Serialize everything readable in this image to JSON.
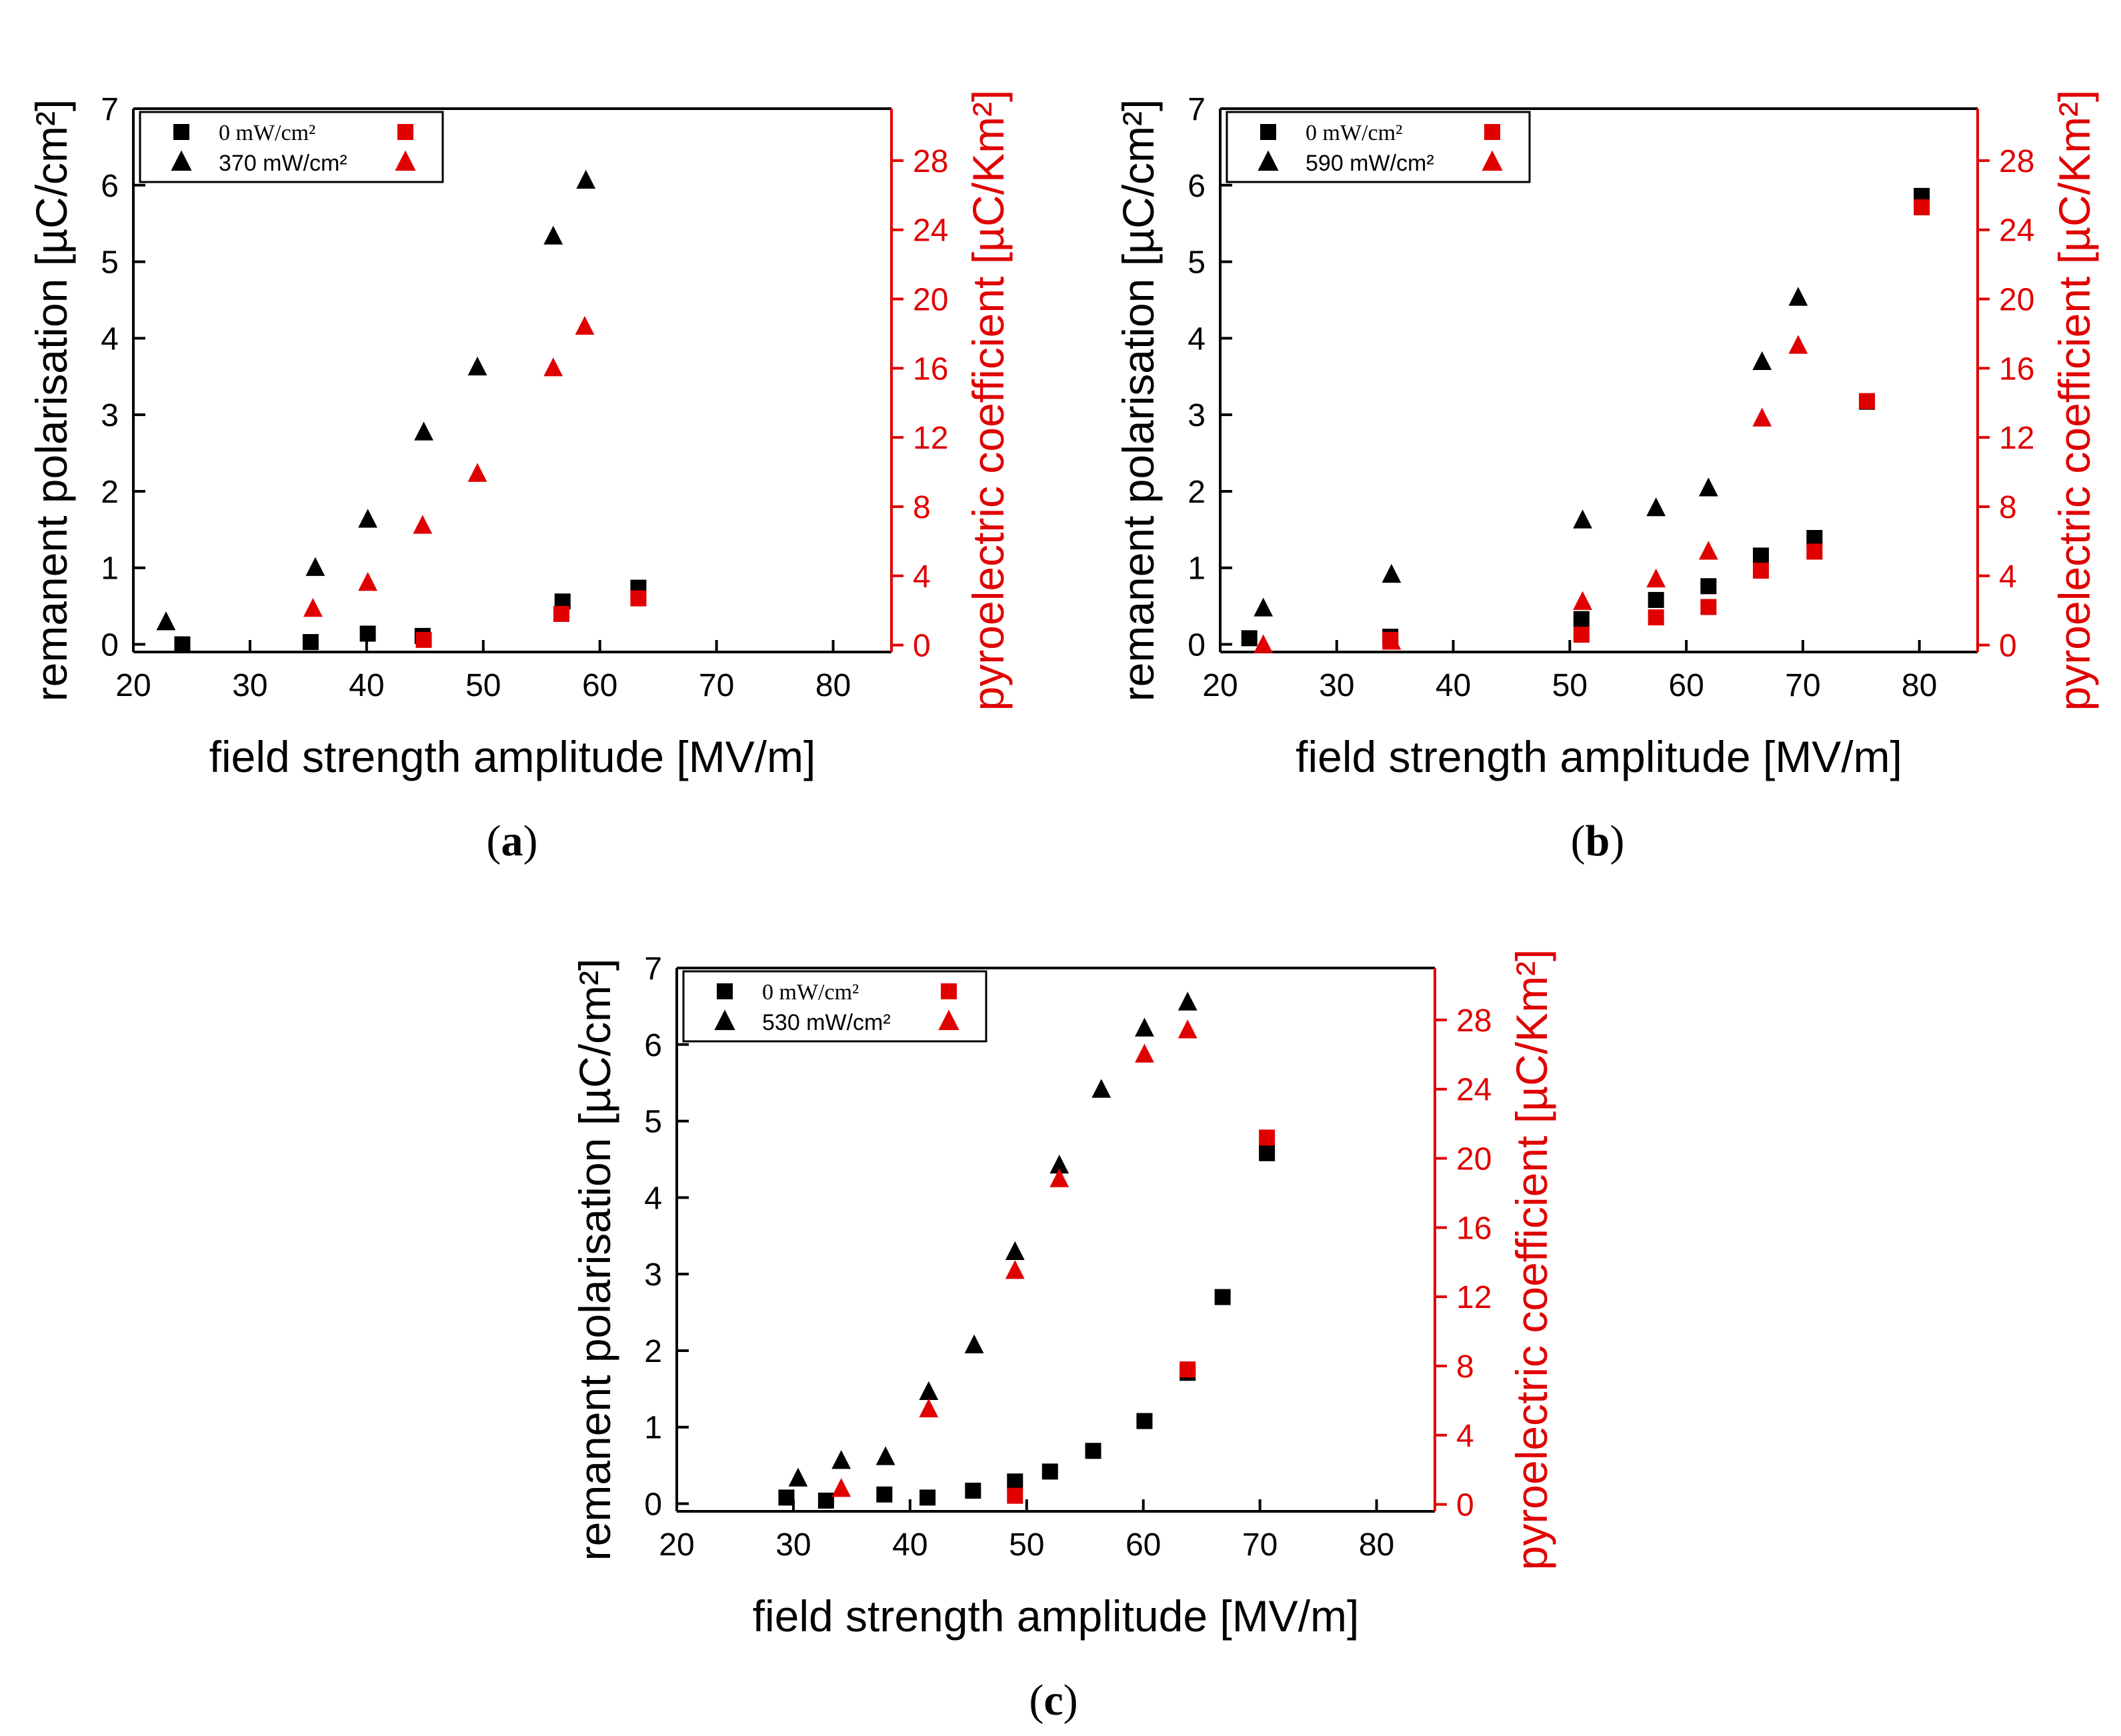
{
  "colors": {
    "black": "#000000",
    "red": "#e00000"
  },
  "chart_data": [
    {
      "type": "scatter",
      "caption_letter": "a",
      "xlabel": "field strength amplitude [MV/m]",
      "ylabel": "remanent polarisation [µC/cm²]",
      "y2label": "pyroelectric coefficient [µC/Km²]",
      "xlim": [
        20,
        85
      ],
      "ylim": [
        -0.1,
        7
      ],
      "y2lim": [
        -0.4,
        31
      ],
      "xticks": [
        "20",
        "30",
        "40",
        "50",
        "60",
        "70",
        "80"
      ],
      "yticks": [
        "0",
        "1",
        "2",
        "3",
        "4",
        "5",
        "6",
        "7"
      ],
      "y2ticks": [
        "0",
        "4",
        "8",
        "12",
        "16",
        "20",
        "24",
        "28"
      ],
      "legend": {
        "row1": "0 mW/cm²",
        "row2": "370 mW/cm²"
      },
      "series": [
        {
          "name": "0 mW/cm²",
          "axis": "left",
          "marker": "square",
          "color": "black",
          "x": [
            24.2,
            35.2,
            40.1,
            44.8,
            56.8,
            63.3
          ],
          "y": [
            0.0,
            0.03,
            0.14,
            0.11,
            0.56,
            0.74
          ]
        },
        {
          "name": "370 mW/cm²",
          "axis": "left",
          "marker": "triangle",
          "color": "black",
          "x": [
            22.8,
            35.6,
            40.1,
            44.9,
            49.5,
            56.0,
            58.8
          ],
          "y": [
            0.29,
            1.0,
            1.63,
            2.77,
            3.62,
            5.33,
            6.06
          ]
        },
        {
          "name": "0 mW/cm²",
          "axis": "right",
          "marker": "square",
          "color": "red",
          "x": [
            44.9,
            56.7,
            63.3
          ],
          "y": [
            0.3,
            1.8,
            2.7
          ]
        },
        {
          "name": "370 mW/cm²",
          "axis": "right",
          "marker": "triangle",
          "color": "red",
          "x": [
            35.4,
            40.1,
            44.8,
            49.5,
            56.0,
            58.7
          ],
          "y": [
            2.1,
            3.6,
            6.9,
            9.9,
            16.0,
            18.4
          ]
        }
      ]
    },
    {
      "type": "scatter",
      "caption_letter": "b",
      "xlabel": "field strength amplitude [MV/m]",
      "ylabel": "remanent polarisation [µC/cm²]",
      "y2label": "pyroelectric coefficient [µC/Km²]",
      "xlim": [
        20,
        85
      ],
      "ylim": [
        -0.1,
        7
      ],
      "y2lim": [
        -0.4,
        31
      ],
      "xticks": [
        "20",
        "30",
        "40",
        "50",
        "60",
        "70",
        "80"
      ],
      "yticks": [
        "0",
        "1",
        "2",
        "3",
        "4",
        "5",
        "6",
        "7"
      ],
      "y2ticks": [
        "0",
        "4",
        "8",
        "12",
        "16",
        "20",
        "24",
        "28"
      ],
      "legend": {
        "row1": "0 mW/cm²",
        "row2": "590 mW/cm²"
      },
      "series": [
        {
          "name": "0 mW/cm²",
          "axis": "left",
          "marker": "square",
          "color": "black",
          "x": [
            22.5,
            34.6,
            51.0,
            57.4,
            61.9,
            66.4,
            71.0,
            75.5,
            80.2
          ],
          "y": [
            0.08,
            0.1,
            0.33,
            0.58,
            0.76,
            1.16,
            1.39,
            3.17,
            5.86
          ]
        },
        {
          "name": "590 mW/cm²",
          "axis": "left",
          "marker": "triangle",
          "color": "black",
          "x": [
            23.7,
            34.7,
            51.1,
            57.4,
            61.9,
            66.5,
            69.6
          ],
          "y": [
            0.47,
            0.91,
            1.62,
            1.78,
            2.04,
            3.69,
            4.53
          ]
        },
        {
          "name": "0 mW/cm²",
          "axis": "right",
          "marker": "square",
          "color": "red",
          "x": [
            34.6,
            51.0,
            57.4,
            61.9,
            66.4,
            71.0,
            75.5,
            80.2
          ],
          "y": [
            0.3,
            0.6,
            1.6,
            2.2,
            4.3,
            5.4,
            14.1,
            25.3
          ]
        },
        {
          "name": "590 mW/cm²",
          "axis": "right",
          "marker": "triangle",
          "color": "red",
          "x": [
            23.7,
            34.7,
            51.1,
            57.4,
            61.9,
            66.5,
            69.6
          ],
          "y": [
            0.0,
            0.2,
            2.5,
            3.8,
            5.4,
            13.1,
            17.3
          ]
        }
      ]
    },
    {
      "type": "scatter",
      "caption_letter": "c",
      "xlabel": "field strength amplitude [MV/m]",
      "ylabel": "remanent polarisation [µC/cm²]",
      "y2label": "pyroelectric coefficient [µC/Km²]",
      "xlim": [
        20,
        85
      ],
      "ylim": [
        -0.1,
        7
      ],
      "y2lim": [
        -0.4,
        31
      ],
      "xticks": [
        "20",
        "30",
        "40",
        "50",
        "60",
        "70",
        "80"
      ],
      "yticks": [
        "0",
        "1",
        "2",
        "3",
        "4",
        "5",
        "6",
        "7"
      ],
      "y2ticks": [
        "0",
        "4",
        "8",
        "12",
        "16",
        "20",
        "24",
        "28"
      ],
      "legend": {
        "row1": "0 mW/cm²",
        "row2": "530 mW/cm²"
      },
      "series": [
        {
          "name": "0 mW/cm²",
          "axis": "left",
          "marker": "square",
          "color": "black",
          "x": [
            29.4,
            32.8,
            37.8,
            41.5,
            45.4,
            49.0,
            52.0,
            55.7,
            60.1,
            63.8,
            66.8,
            70.6
          ],
          "y": [
            0.08,
            0.04,
            0.12,
            0.08,
            0.17,
            0.29,
            0.42,
            0.69,
            1.08,
            1.71,
            2.7,
            4.58
          ]
        },
        {
          "name": "530 mW/cm²",
          "axis": "left",
          "marker": "triangle",
          "color": "black",
          "x": [
            30.4,
            34.1,
            37.9,
            41.6,
            45.5,
            49.0,
            52.8,
            56.4,
            60.1,
            63.8
          ],
          "y": [
            0.33,
            0.56,
            0.61,
            1.46,
            2.07,
            3.29,
            4.42,
            5.41,
            6.21,
            6.55
          ]
        },
        {
          "name": "0 mW/cm²",
          "axis": "right",
          "marker": "square",
          "color": "red",
          "x": [
            49.0,
            63.8,
            70.6
          ],
          "y": [
            0.5,
            7.8,
            21.2
          ]
        },
        {
          "name": "530 mW/cm²",
          "axis": "right",
          "marker": "triangle",
          "color": "red",
          "x": [
            34.1,
            41.6,
            49.0,
            52.8,
            60.1,
            63.8
          ],
          "y": [
            0.9,
            5.5,
            13.5,
            18.8,
            26.0,
            27.4
          ]
        }
      ]
    }
  ]
}
